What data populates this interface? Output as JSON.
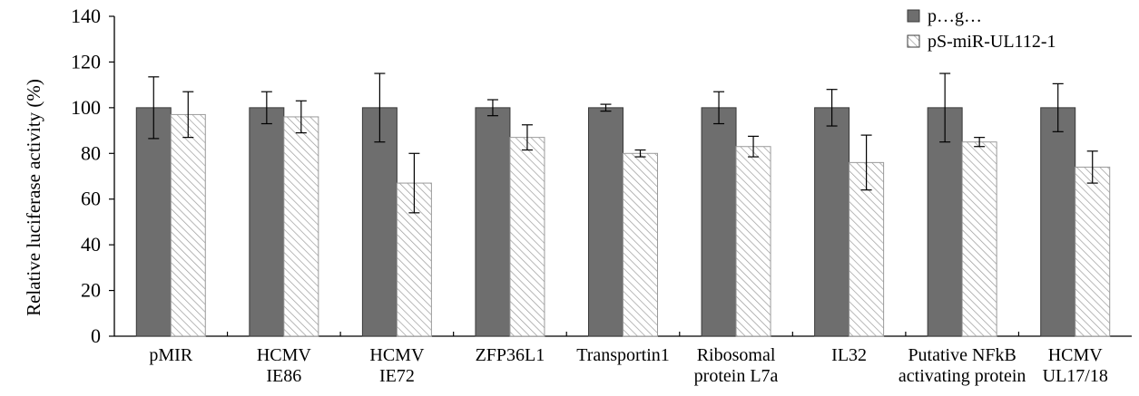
{
  "chart_data": {
    "type": "bar",
    "ylabel": "Relative luciferase activity (%)",
    "xlabel": "",
    "ylim": [
      0,
      140
    ],
    "yticks": [
      0,
      20,
      40,
      60,
      80,
      100,
      120,
      140
    ],
    "categories": [
      [
        "pMIR"
      ],
      [
        "HCMV",
        "IE86"
      ],
      [
        "HCMV",
        "IE72"
      ],
      [
        "ZFP36L1"
      ],
      [
        "Transportin1"
      ],
      [
        "Ribosomal",
        "protein L7a"
      ],
      [
        "IL32"
      ],
      [
        "Putative NFkB",
        "activating protein"
      ],
      [
        "HCMV",
        "UL17/18"
      ]
    ],
    "series": [
      {
        "name": "p…g…",
        "color": "#6e6e6e",
        "pattern": "solid",
        "values": [
          100,
          100,
          100,
          100,
          100,
          100,
          100,
          100,
          100
        ],
        "errors": [
          13.5,
          7,
          15,
          3.5,
          1.5,
          7,
          8,
          15,
          10.5
        ]
      },
      {
        "name": "pS-miR-UL112-1",
        "color": "#ffffff",
        "pattern": "hatched",
        "values": [
          97,
          96,
          67,
          87,
          80,
          83,
          76,
          85,
          74
        ],
        "errors": [
          10,
          7,
          13,
          5.5,
          1.5,
          4.5,
          12,
          2,
          7
        ]
      }
    ],
    "grid": false,
    "legend_position": "top-right"
  }
}
